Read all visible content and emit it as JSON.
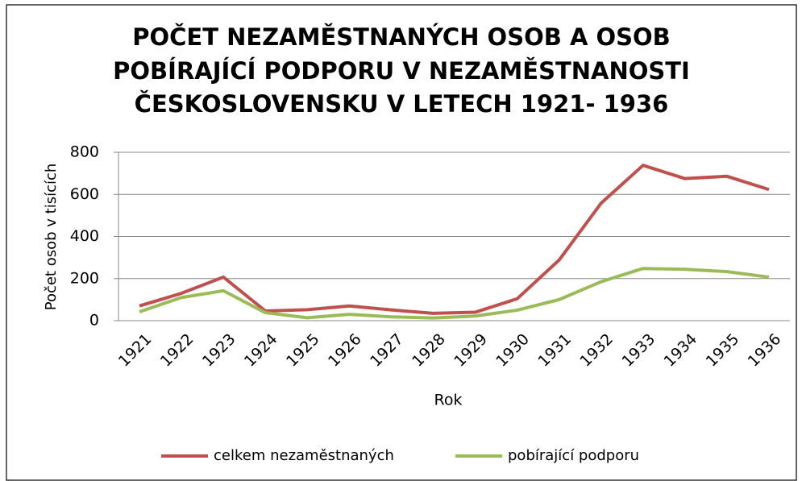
{
  "chart_data": {
    "type": "line",
    "title": [
      "POČET NEZAMĚSTNANÝCH OSOB A OSOB",
      "POBÍRAJÍCÍ PODPORU V NEZAMĚSTNANOSTI",
      "ČESKOSLOVENSKU V LETECH 1921- 1936"
    ],
    "x_label": "Rok",
    "y_label": "Počet osob v tisících",
    "categories": [
      "1921",
      "1922",
      "1923",
      "1924",
      "1925",
      "1926",
      "1927",
      "1928",
      "1929",
      "1930",
      "1931",
      "1932",
      "1933",
      "1934",
      "1935",
      "1936"
    ],
    "series": [
      {
        "name": "celkem nezaměstnaných",
        "color": "#c0504d",
        "values": [
          70,
          130,
          207,
          46,
          52,
          70,
          51,
          35,
          40,
          104,
          288,
          558,
          738,
          675,
          686,
          623
        ]
      },
      {
        "name": "pobírající podporu",
        "color": "#9bbb59",
        "values": [
          42,
          110,
          142,
          38,
          14,
          30,
          18,
          13,
          22,
          50,
          100,
          185,
          248,
          244,
          233,
          207
        ]
      }
    ],
    "ylim": [
      0,
      800
    ],
    "yticks": [
      0,
      200,
      400,
      600,
      800
    ],
    "grid": true,
    "legend": "bottom"
  }
}
